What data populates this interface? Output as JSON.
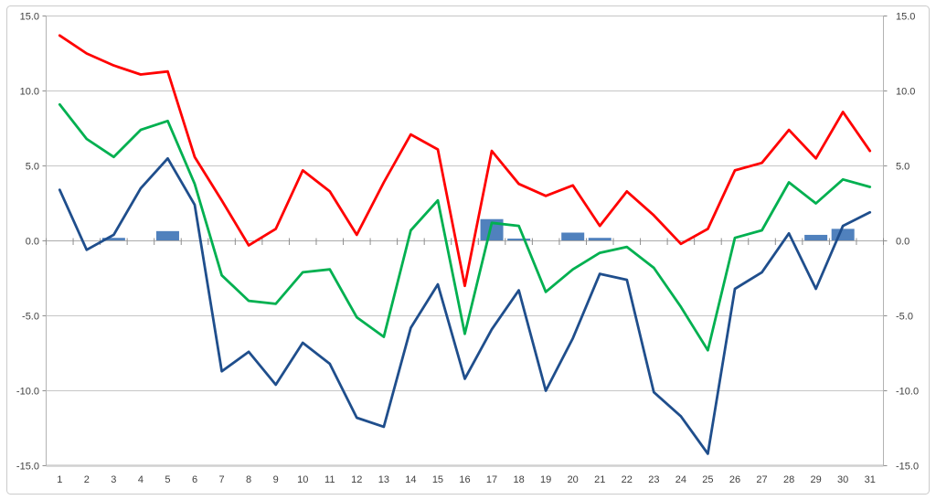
{
  "chart_data": {
    "type": "combo",
    "title": "",
    "legend": "none",
    "grid": true,
    "x": {
      "labels": [
        "1",
        "2",
        "3",
        "4",
        "5",
        "6",
        "7",
        "8",
        "9",
        "10",
        "11",
        "12",
        "13",
        "14",
        "15",
        "16",
        "17",
        "18",
        "19",
        "20",
        "21",
        "22",
        "23",
        "24",
        "25",
        "26",
        "27",
        "28",
        "29",
        "30",
        "31"
      ]
    },
    "y_axis": {
      "min": -15,
      "max": 15,
      "tick_step": 5,
      "tick_labels": [
        "15.0",
        "10.0",
        "5.0",
        "0.0",
        "-5.0",
        "-10.0",
        "-15.0"
      ],
      "label_sides": "both"
    },
    "series": [
      {
        "name": "red-line",
        "type": "line",
        "color": "#FF0000",
        "values": [
          13.7,
          12.5,
          11.7,
          11.1,
          11.3,
          5.6,
          2.7,
          -0.3,
          0.8,
          4.7,
          3.3,
          0.4,
          3.9,
          7.1,
          6.1,
          -3.0,
          6.0,
          3.8,
          3.0,
          3.7,
          1.0,
          3.3,
          1.7,
          -0.2,
          0.8,
          4.7,
          5.2,
          7.4,
          5.5,
          8.6,
          6.0
        ]
      },
      {
        "name": "green-line",
        "type": "line",
        "color": "#00B050",
        "values": [
          9.1,
          6.8,
          5.6,
          7.4,
          8.0,
          3.8,
          -2.3,
          -4.0,
          -4.2,
          -2.1,
          -1.9,
          -5.1,
          -6.4,
          0.7,
          2.7,
          -6.2,
          1.2,
          1.0,
          -3.4,
          -1.9,
          -0.8,
          -0.4,
          -1.8,
          -4.4,
          -7.3,
          0.2,
          0.7,
          3.9,
          2.5,
          4.1,
          3.6
        ]
      },
      {
        "name": "dark-blue-line",
        "type": "line",
        "color": "#1F4E8C",
        "values": [
          3.4,
          -0.6,
          0.4,
          3.5,
          5.5,
          2.4,
          -8.7,
          -7.4,
          -9.6,
          -6.8,
          -8.2,
          -11.8,
          -12.4,
          -5.8,
          -2.9,
          -9.2,
          -5.9,
          -3.3,
          -10.0,
          -6.5,
          -2.2,
          -2.6,
          -10.1,
          -11.7,
          -14.2,
          -3.2,
          -2.1,
          0.5,
          -3.2,
          1.0,
          1.9
        ]
      },
      {
        "name": "blue-bars",
        "type": "bar",
        "color": "#5081BD",
        "values": [
          0,
          0,
          0.2,
          0,
          0.65,
          0,
          0,
          0,
          0,
          0,
          0,
          0,
          0,
          0,
          0,
          0,
          1.45,
          0.15,
          0,
          0.55,
          0.2,
          0,
          0,
          0,
          0,
          0,
          0,
          0,
          0.4,
          0.8,
          0
        ]
      }
    ]
  },
  "styles": {
    "background": "#FFFFFF",
    "border_color": "#CBCBCB",
    "gridline_color": "#C6C6C6",
    "bottom_line_color": "#D0D0D0",
    "axis_line_color": "#B3B3B3",
    "zero_axis_color": "#ABABAB",
    "tick_color": "#8E8E8E",
    "label_color": "#3F3F3F"
  }
}
